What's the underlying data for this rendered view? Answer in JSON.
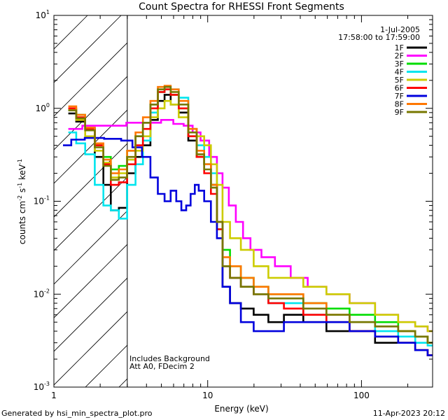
{
  "chart_data": {
    "type": "line",
    "title": "Count Spectra for RHESSI Front Segments",
    "xlabel": "Energy (keV)",
    "ylabel": "counts cm",
    "ylabel_sup1": "-2",
    "ylabel_mid": " s",
    "ylabel_sup2": "-1",
    "ylabel_end": " keV",
    "ylabel_sup3": "-1",
    "xscale": "log",
    "yscale": "log",
    "xlim": [
      1,
      290
    ],
    "ylim": [
      0.001,
      10
    ],
    "xticks": [
      {
        "v": 1,
        "label": "1"
      },
      {
        "v": 10,
        "label": "10"
      },
      {
        "v": 100,
        "label": "100"
      }
    ],
    "yticks": [
      {
        "v": 0.001,
        "base": "10",
        "exp": "-3"
      },
      {
        "v": 0.01,
        "base": "10",
        "exp": "-2"
      },
      {
        "v": 0.1,
        "base": "10",
        "exp": "-1"
      },
      {
        "v": 1,
        "base": "10",
        "exp": "0"
      },
      {
        "v": 10,
        "base": "10",
        "exp": "1"
      }
    ],
    "hatch_region": [
      1,
      3
    ],
    "date": "1-Jul-2005",
    "time_range": "17:58:00 to 17:59:00",
    "annotations": [
      "Includes Background",
      "Att A0, FDecim 2"
    ],
    "series": [
      {
        "name": "1F",
        "color": "#000000",
        "points": [
          [
            1.3,
            0.88
          ],
          [
            1.5,
            0.72
          ],
          [
            1.7,
            0.6
          ],
          [
            2.0,
            0.3
          ],
          [
            2.2,
            0.15
          ],
          [
            2.5,
            0.08
          ],
          [
            2.8,
            0.085
          ],
          [
            3.2,
            0.2
          ],
          [
            3.6,
            0.3
          ],
          [
            4.0,
            0.4
          ],
          [
            4.5,
            0.75
          ],
          [
            5.0,
            1.2
          ],
          [
            5.5,
            1.4
          ],
          [
            6.0,
            1.1
          ],
          [
            7.0,
            0.9
          ],
          [
            8.0,
            0.45
          ],
          [
            9.0,
            0.3
          ],
          [
            10.0,
            0.25
          ],
          [
            11.0,
            0.15
          ],
          [
            12.0,
            0.06
          ],
          [
            13.0,
            0.012
          ],
          [
            15.0,
            0.008
          ],
          [
            18.0,
            0.007
          ],
          [
            22.0,
            0.006
          ],
          [
            28.0,
            0.005
          ],
          [
            35.0,
            0.006
          ],
          [
            50.0,
            0.005
          ],
          [
            70.0,
            0.004
          ],
          [
            100.0,
            0.004
          ],
          [
            150.0,
            0.003
          ],
          [
            200.0,
            0.003
          ],
          [
            250.0,
            0.0025
          ],
          [
            290.0,
            0.0022
          ]
        ]
      },
      {
        "name": "2F",
        "color": "#ff00ff",
        "points": [
          [
            1.3,
            0.6
          ],
          [
            1.8,
            0.65
          ],
          [
            2.5,
            0.65
          ],
          [
            3.5,
            0.7
          ],
          [
            4.5,
            0.7
          ],
          [
            5.5,
            0.75
          ],
          [
            6.5,
            0.68
          ],
          [
            7.5,
            0.65
          ],
          [
            8.5,
            0.55
          ],
          [
            9.5,
            0.45
          ],
          [
            11.0,
            0.3
          ],
          [
            12.0,
            0.2
          ],
          [
            13.0,
            0.14
          ],
          [
            14.5,
            0.09
          ],
          [
            16.0,
            0.06
          ],
          [
            18.0,
            0.04
          ],
          [
            20.0,
            0.03
          ],
          [
            25.0,
            0.025
          ],
          [
            30.0,
            0.02
          ],
          [
            40.0,
            0.015
          ],
          [
            50.0,
            0.012
          ],
          [
            70.0,
            0.01
          ],
          [
            100.0,
            0.008
          ],
          [
            150.0,
            0.006
          ],
          [
            200.0,
            0.005
          ],
          [
            250.0,
            0.0045
          ],
          [
            290.0,
            0.004
          ]
        ]
      },
      {
        "name": "3F",
        "color": "#00dd00",
        "points": [
          [
            1.3,
            0.95
          ],
          [
            1.5,
            0.85
          ],
          [
            1.7,
            0.62
          ],
          [
            2.0,
            0.4
          ],
          [
            2.2,
            0.3
          ],
          [
            2.5,
            0.22
          ],
          [
            2.8,
            0.24
          ],
          [
            3.2,
            0.35
          ],
          [
            3.6,
            0.5
          ],
          [
            4.0,
            0.7
          ],
          [
            4.5,
            1.1
          ],
          [
            5.0,
            1.5
          ],
          [
            5.5,
            1.6
          ],
          [
            6.0,
            1.4
          ],
          [
            7.0,
            1.0
          ],
          [
            8.0,
            0.5
          ],
          [
            9.0,
            0.3
          ],
          [
            10.0,
            0.25
          ],
          [
            11.0,
            0.15
          ],
          [
            12.0,
            0.05
          ],
          [
            13.0,
            0.03
          ],
          [
            15.0,
            0.02
          ],
          [
            18.0,
            0.015
          ],
          [
            22.0,
            0.012
          ],
          [
            28.0,
            0.01
          ],
          [
            35.0,
            0.01
          ],
          [
            50.0,
            0.008
          ],
          [
            70.0,
            0.007
          ],
          [
            100.0,
            0.006
          ],
          [
            150.0,
            0.005
          ],
          [
            200.0,
            0.004
          ],
          [
            250.0,
            0.0035
          ],
          [
            290.0,
            0.003
          ]
        ]
      },
      {
        "name": "4F",
        "color": "#00e5ee",
        "points": [
          [
            1.3,
            0.55
          ],
          [
            1.5,
            0.42
          ],
          [
            1.7,
            0.32
          ],
          [
            2.0,
            0.15
          ],
          [
            2.2,
            0.09
          ],
          [
            2.5,
            0.08
          ],
          [
            2.8,
            0.065
          ],
          [
            3.2,
            0.15
          ],
          [
            3.6,
            0.25
          ],
          [
            4.0,
            0.45
          ],
          [
            4.5,
            0.9
          ],
          [
            5.0,
            1.5
          ],
          [
            5.5,
            1.7
          ],
          [
            6.0,
            1.6
          ],
          [
            7.0,
            1.3
          ],
          [
            8.0,
            0.6
          ],
          [
            9.0,
            0.4
          ],
          [
            10.0,
            0.3
          ],
          [
            11.0,
            0.2
          ],
          [
            12.0,
            0.06
          ],
          [
            13.0,
            0.02
          ],
          [
            15.0,
            0.015
          ],
          [
            18.0,
            0.012
          ],
          [
            22.0,
            0.01
          ],
          [
            28.0,
            0.008
          ],
          [
            35.0,
            0.008
          ],
          [
            50.0,
            0.006
          ],
          [
            70.0,
            0.005
          ],
          [
            100.0,
            0.005
          ],
          [
            150.0,
            0.004
          ],
          [
            200.0,
            0.0035
          ],
          [
            250.0,
            0.003
          ],
          [
            290.0,
            0.0028
          ]
        ]
      },
      {
        "name": "5F",
        "color": "#cccc00",
        "points": [
          [
            1.3,
            0.98
          ],
          [
            1.5,
            0.75
          ],
          [
            1.7,
            0.5
          ],
          [
            2.0,
            0.35
          ],
          [
            2.2,
            0.26
          ],
          [
            2.5,
            0.18
          ],
          [
            2.8,
            0.2
          ],
          [
            3.2,
            0.28
          ],
          [
            3.6,
            0.35
          ],
          [
            4.0,
            0.5
          ],
          [
            4.5,
            0.8
          ],
          [
            5.0,
            1.0
          ],
          [
            5.5,
            1.2
          ],
          [
            6.0,
            1.1
          ],
          [
            7.0,
            0.8
          ],
          [
            8.0,
            0.6
          ],
          [
            9.0,
            0.5
          ],
          [
            10.0,
            0.4
          ],
          [
            11.0,
            0.25
          ],
          [
            12.0,
            0.15
          ],
          [
            13.0,
            0.06
          ],
          [
            15.0,
            0.04
          ],
          [
            18.0,
            0.03
          ],
          [
            22.0,
            0.02
          ],
          [
            28.0,
            0.015
          ],
          [
            35.0,
            0.015
          ],
          [
            50.0,
            0.012
          ],
          [
            70.0,
            0.01
          ],
          [
            100.0,
            0.008
          ],
          [
            150.0,
            0.006
          ],
          [
            200.0,
            0.005
          ],
          [
            250.0,
            0.0045
          ],
          [
            290.0,
            0.004
          ]
        ]
      },
      {
        "name": "6F",
        "color": "#ff0000",
        "points": [
          [
            1.3,
            1.0
          ],
          [
            1.5,
            0.8
          ],
          [
            1.7,
            0.6
          ],
          [
            2.0,
            0.4
          ],
          [
            2.2,
            0.25
          ],
          [
            2.5,
            0.15
          ],
          [
            2.8,
            0.16
          ],
          [
            3.2,
            0.25
          ],
          [
            3.6,
            0.4
          ],
          [
            4.0,
            0.6
          ],
          [
            4.5,
            1.0
          ],
          [
            5.0,
            1.5
          ],
          [
            5.5,
            1.6
          ],
          [
            6.0,
            1.4
          ],
          [
            7.0,
            1.0
          ],
          [
            8.0,
            0.5
          ],
          [
            9.0,
            0.3
          ],
          [
            10.0,
            0.2
          ],
          [
            11.0,
            0.12
          ],
          [
            12.0,
            0.05
          ],
          [
            13.0,
            0.02
          ],
          [
            15.0,
            0.015
          ],
          [
            18.0,
            0.012
          ],
          [
            22.0,
            0.01
          ],
          [
            28.0,
            0.008
          ],
          [
            35.0,
            0.007
          ],
          [
            50.0,
            0.006
          ],
          [
            70.0,
            0.005
          ],
          [
            100.0,
            0.004
          ],
          [
            150.0,
            0.0035
          ],
          [
            200.0,
            0.003
          ],
          [
            250.0,
            0.0025
          ],
          [
            290.0,
            0.0022
          ]
        ]
      },
      {
        "name": "7F",
        "color": "#0000dd",
        "points": [
          [
            1.2,
            0.4
          ],
          [
            1.4,
            0.46
          ],
          [
            1.8,
            0.48
          ],
          [
            2.5,
            0.47
          ],
          [
            3.0,
            0.45
          ],
          [
            3.5,
            0.38
          ],
          [
            4.0,
            0.3
          ],
          [
            4.5,
            0.18
          ],
          [
            5.0,
            0.12
          ],
          [
            5.5,
            0.1
          ],
          [
            6.0,
            0.13
          ],
          [
            6.5,
            0.1
          ],
          [
            7.0,
            0.08
          ],
          [
            7.5,
            0.09
          ],
          [
            8.0,
            0.12
          ],
          [
            8.5,
            0.15
          ],
          [
            9.0,
            0.13
          ],
          [
            10.0,
            0.1
          ],
          [
            11.0,
            0.06
          ],
          [
            12.0,
            0.04
          ],
          [
            13.0,
            0.012
          ],
          [
            15.0,
            0.008
          ],
          [
            18.0,
            0.005
          ],
          [
            22.0,
            0.004
          ],
          [
            28.0,
            0.004
          ],
          [
            35.0,
            0.005
          ],
          [
            50.0,
            0.005
          ],
          [
            70.0,
            0.005
          ],
          [
            100.0,
            0.004
          ],
          [
            150.0,
            0.0035
          ],
          [
            200.0,
            0.003
          ],
          [
            250.0,
            0.0025
          ],
          [
            290.0,
            0.0022
          ]
        ]
      },
      {
        "name": "8F",
        "color": "#ff7700",
        "points": [
          [
            1.3,
            1.05
          ],
          [
            1.5,
            0.85
          ],
          [
            1.7,
            0.62
          ],
          [
            2.0,
            0.42
          ],
          [
            2.2,
            0.28
          ],
          [
            2.5,
            0.2
          ],
          [
            2.8,
            0.22
          ],
          [
            3.2,
            0.35
          ],
          [
            3.6,
            0.55
          ],
          [
            4.0,
            0.8
          ],
          [
            4.5,
            1.2
          ],
          [
            5.0,
            1.7
          ],
          [
            5.5,
            1.75
          ],
          [
            6.0,
            1.6
          ],
          [
            7.0,
            1.2
          ],
          [
            8.0,
            0.6
          ],
          [
            9.0,
            0.35
          ],
          [
            10.0,
            0.25
          ],
          [
            11.0,
            0.15
          ],
          [
            12.0,
            0.06
          ],
          [
            13.0,
            0.025
          ],
          [
            15.0,
            0.02
          ],
          [
            18.0,
            0.015
          ],
          [
            22.0,
            0.012
          ],
          [
            28.0,
            0.01
          ],
          [
            35.0,
            0.01
          ],
          [
            50.0,
            0.008
          ],
          [
            70.0,
            0.006
          ],
          [
            100.0,
            0.005
          ],
          [
            150.0,
            0.0045
          ],
          [
            200.0,
            0.004
          ],
          [
            250.0,
            0.0035
          ],
          [
            290.0,
            0.003
          ]
        ]
      },
      {
        "name": "9F",
        "color": "#777700",
        "points": [
          [
            1.3,
            0.95
          ],
          [
            1.5,
            0.78
          ],
          [
            1.7,
            0.58
          ],
          [
            2.0,
            0.38
          ],
          [
            2.2,
            0.24
          ],
          [
            2.5,
            0.17
          ],
          [
            2.8,
            0.18
          ],
          [
            3.2,
            0.3
          ],
          [
            3.6,
            0.5
          ],
          [
            4.0,
            0.7
          ],
          [
            4.5,
            1.1
          ],
          [
            5.0,
            1.6
          ],
          [
            5.5,
            1.7
          ],
          [
            6.0,
            1.5
          ],
          [
            7.0,
            1.1
          ],
          [
            8.0,
            0.55
          ],
          [
            9.0,
            0.32
          ],
          [
            10.0,
            0.22
          ],
          [
            11.0,
            0.14
          ],
          [
            12.0,
            0.06
          ],
          [
            13.0,
            0.02
          ],
          [
            15.0,
            0.015
          ],
          [
            18.0,
            0.012
          ],
          [
            22.0,
            0.01
          ],
          [
            28.0,
            0.009
          ],
          [
            35.0,
            0.009
          ],
          [
            50.0,
            0.007
          ],
          [
            70.0,
            0.006
          ],
          [
            100.0,
            0.005
          ],
          [
            150.0,
            0.0045
          ],
          [
            200.0,
            0.004
          ],
          [
            250.0,
            0.0035
          ],
          [
            290.0,
            0.003
          ]
        ]
      }
    ]
  },
  "footer": {
    "generated_by": "Generated by hsi_min_spectra_plot.pro",
    "timestamp": "11-Apr-2023 20:12"
  }
}
